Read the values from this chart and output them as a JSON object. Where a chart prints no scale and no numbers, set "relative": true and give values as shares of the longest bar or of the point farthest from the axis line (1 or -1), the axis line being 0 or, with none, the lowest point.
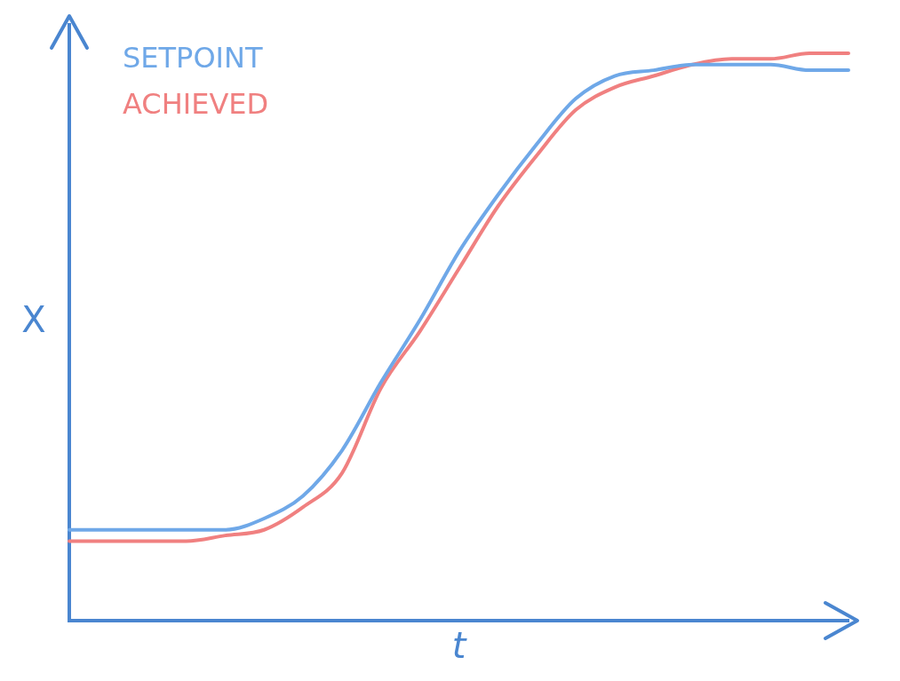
{
  "chart_data": {
    "type": "line",
    "relative": true,
    "xlabel": "t",
    "ylabel": "X",
    "legend": "top left",
    "marker": "none",
    "categories": [
      null,
      null,
      null,
      null,
      null,
      null,
      null,
      null,
      null,
      null,
      null,
      null,
      null,
      null,
      null,
      null,
      null,
      null,
      null,
      null,
      null
    ],
    "series": [
      {
        "name": "SETPOINT",
        "color": "#6fa8e8",
        "values": [
          0.16,
          0.16,
          0.16,
          0.16,
          0.16,
          0.18,
          0.22,
          0.3,
          0.42,
          0.53,
          0.65,
          0.75,
          0.84,
          0.92,
          0.96,
          0.97,
          0.98,
          0.98,
          0.98,
          0.97,
          0.97
        ]
      },
      {
        "name": "ACHIEVED",
        "color": "#f08080",
        "values": [
          0.14,
          0.14,
          0.14,
          0.14,
          0.15,
          0.16,
          0.2,
          0.26,
          0.41,
          0.51,
          0.62,
          0.73,
          0.82,
          0.9,
          0.94,
          0.96,
          0.98,
          0.99,
          0.99,
          1.0,
          1.0
        ]
      }
    ]
  }
}
